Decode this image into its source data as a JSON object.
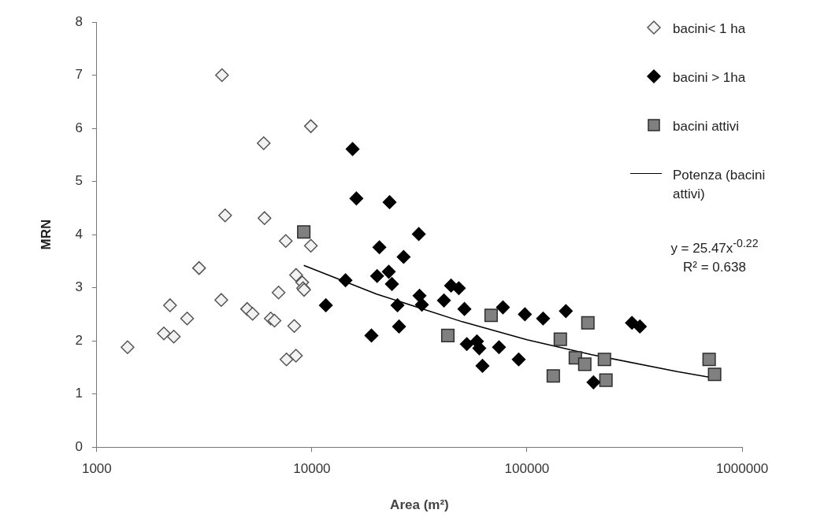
{
  "chart_data": {
    "type": "scatter",
    "xlabel": "Area (m²)",
    "ylabel": "MRN",
    "log": "x",
    "xlim": [
      1000,
      1000000
    ],
    "xticks": [
      1000,
      10000,
      100000,
      1000000
    ],
    "ylim": [
      0,
      8
    ],
    "yticks": [
      0,
      1,
      2,
      3,
      4,
      5,
      6,
      7,
      8
    ],
    "grid": false,
    "legend": "top right",
    "annotations": [
      "y = 25.47x$^{-0.22}$",
      "R² = 0.638"
    ],
    "series": [
      {
        "name": "bacini< 1 ha",
        "color": "#f2f2f2",
        "marker": "diamond",
        "x": [
          1390,
          2050,
          2190,
          2280,
          2630,
          2990,
          3820,
          3790,
          3950,
          5000,
          5300,
          5970,
          6020,
          6440,
          6700,
          7000,
          7560,
          7620,
          8430,
          8280,
          8440,
          9020,
          9100,
          9200,
          9890,
          9890
        ],
        "values": [
          1.88,
          2.14,
          2.67,
          2.08,
          2.42,
          3.37,
          7.0,
          2.77,
          4.36,
          2.6,
          2.51,
          5.72,
          4.31,
          2.42,
          2.38,
          2.91,
          3.88,
          1.65,
          1.72,
          2.28,
          3.24,
          3.1,
          2.99,
          2.96,
          3.79,
          6.04
        ]
      },
      {
        "name": "bacini > 1ha",
        "color": "#000000",
        "marker": "diamond",
        "x": [
          15460,
          16100,
          22970,
          31400,
          20600,
          26700,
          14330,
          20100,
          22770,
          23550,
          11610,
          25000,
          31650,
          32460,
          25420,
          18920,
          41100,
          44360,
          48200,
          51200,
          52500,
          58500,
          60000,
          62100,
          74100,
          77300,
          97800,
          91500,
          118800,
          151600,
          307600,
          334800,
          203700
        ],
        "values": [
          5.61,
          4.68,
          4.61,
          4.01,
          3.76,
          3.58,
          3.14,
          3.22,
          3.3,
          3.07,
          2.67,
          2.67,
          2.85,
          2.68,
          2.27,
          2.1,
          2.76,
          3.04,
          2.99,
          2.6,
          1.94,
          1.99,
          1.86,
          1.53,
          1.88,
          2.63,
          2.5,
          1.65,
          2.42,
          2.56,
          2.34,
          2.27,
          1.22
        ]
      },
      {
        "name": "bacini attivi",
        "color": "#808080",
        "marker": "square",
        "x": [
          9170,
          42850,
          68100,
          142900,
          191900,
          132500,
          167800,
          185600,
          229100,
          232800,
          702600,
          745000
        ],
        "values": [
          4.05,
          2.1,
          2.48,
          2.03,
          2.34,
          1.34,
          1.68,
          1.56,
          1.65,
          1.26,
          1.65,
          1.37
        ]
      },
      {
        "name": "Potenza (bacini attivi)",
        "type": "line",
        "color": "#000000",
        "marker": "none",
        "line_style": "solid",
        "x": [
          9170,
          20000,
          50000,
          100000,
          200000,
          500000,
          745000
        ],
        "values": [
          3.42,
          2.88,
          2.36,
          2.02,
          1.74,
          1.42,
          1.3
        ]
      }
    ]
  }
}
